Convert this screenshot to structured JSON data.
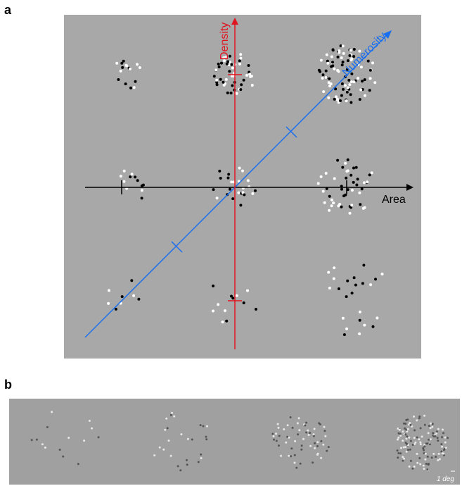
{
  "panels": {
    "a": {
      "label": "a"
    },
    "b": {
      "label": "b"
    }
  },
  "panel_a": {
    "axes": {
      "density": {
        "label": "Density",
        "color": "#e0141e"
      },
      "area": {
        "label": "Area",
        "color": "#000000"
      },
      "numerosity": {
        "label": "Numerosity",
        "color": "#1a6ff0"
      }
    },
    "background": "#a8a8a8",
    "dot_colors": [
      "#000000",
      "#ffffff"
    ]
  },
  "panel_b": {
    "scale_label": "1 deg",
    "background": "#a0a0a0",
    "dot_colors": [
      "#555555",
      "#e8e8e8"
    ]
  }
}
